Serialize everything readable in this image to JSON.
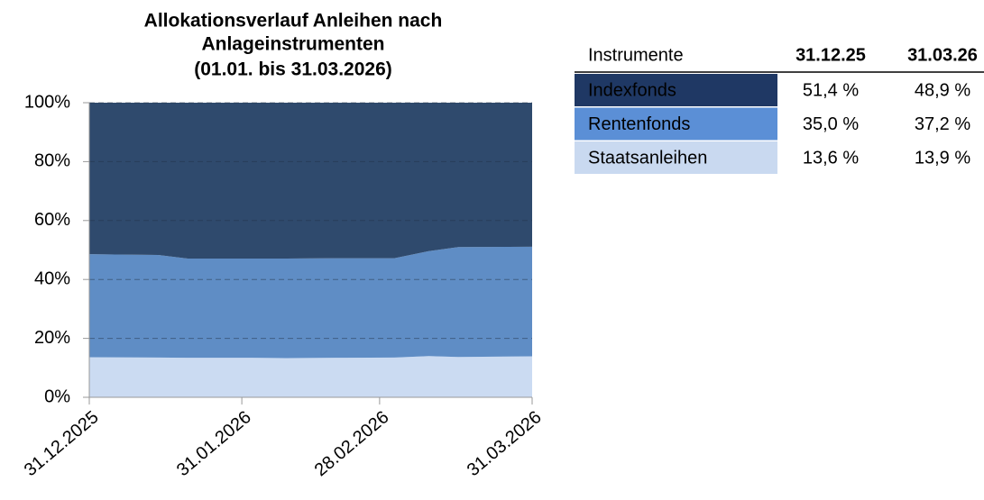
{
  "chart_data": {
    "type": "stacked_area",
    "title": [
      "Allokationsverlauf Anleihen nach",
      "Anlageinstrumenten",
      "(01.01. bis 31.03.2026)"
    ],
    "x": [
      "31.12.2025",
      "14.01.2026",
      "20.01.2026",
      "02.02.2026",
      "09.02.2026",
      "19.02.2026",
      "03.03.2026",
      "10.03.2026",
      "16.03.2026",
      "31.03.2026"
    ],
    "series": [
      {
        "name": "Staatsanleihen",
        "color": "#cbdbf2",
        "values": [
          13.6,
          13.5,
          13.4,
          13.4,
          13.3,
          13.4,
          13.5,
          14.0,
          13.7,
          13.9
        ]
      },
      {
        "name": "Rentenfonds",
        "color": "#5f8dc5",
        "values": [
          35.0,
          34.8,
          33.7,
          33.7,
          33.8,
          33.8,
          33.7,
          35.6,
          37.3,
          37.2
        ]
      },
      {
        "name": "Indexfonds",
        "color": "#2f4a6d",
        "values": [
          51.4,
          51.7,
          52.9,
          52.9,
          52.9,
          52.8,
          52.8,
          50.4,
          49.0,
          48.9
        ]
      }
    ],
    "ylim": [
      0,
      100
    ],
    "yticks": [
      {
        "value": 0,
        "label": "0%"
      },
      {
        "value": 20,
        "label": "20%"
      },
      {
        "value": 40,
        "label": "40%"
      },
      {
        "value": 60,
        "label": "60%"
      },
      {
        "value": 80,
        "label": "80%"
      },
      {
        "value": 100,
        "label": "100%"
      }
    ],
    "xlim": [
      "31.12.2025",
      "31.03.2026"
    ],
    "xticks": [
      "31.12.2025",
      "31.01.2026",
      "28.02.2026",
      "31.03.2026"
    ],
    "grid": true
  },
  "table": {
    "header": [
      "Instrumente",
      "31.12.25",
      "31.03.26"
    ],
    "rows": [
      [
        "Indexfonds",
        "51,4 %",
        "48,9 %"
      ],
      [
        "Rentenfonds",
        "35,0 %",
        "37,2 %"
      ],
      [
        "Staatsanleihen",
        "13,6 %",
        "13,9 %"
      ]
    ],
    "row_colors": [
      "#1f3864",
      "#5b8fd6",
      "#c9d9f0"
    ]
  }
}
